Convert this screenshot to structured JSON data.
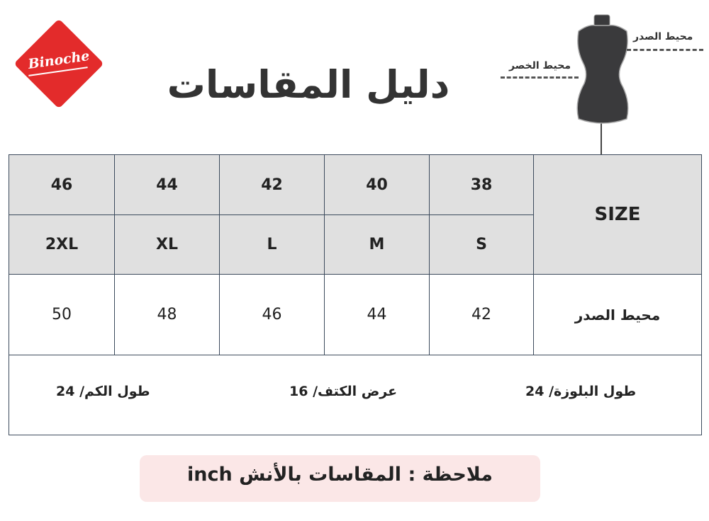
{
  "brand": {
    "logo_text": "Binoche",
    "color": "#e32b2b"
  },
  "title": "دليل المقاسات",
  "mannequin": {
    "chest_label": "محيط الصدر",
    "waist_label": "محيط الخصر"
  },
  "table": {
    "size_header": "SIZE",
    "numeric_sizes": [
      "38",
      "40",
      "42",
      "44",
      "46"
    ],
    "letter_sizes": [
      "S",
      "M",
      "L",
      "XL",
      "2XL"
    ],
    "chest_row": {
      "label": "محيط الصدر",
      "values": [
        "42",
        "44",
        "46",
        "48",
        "50"
      ]
    },
    "footer": {
      "blouse_length": "طول البلوزة/ 24",
      "shoulder_width": "عرض الكتف/ 16",
      "sleeve_length": "طول الكم/ 24"
    }
  },
  "note": "ملاحظة : المقاسات بالأنش inch"
}
